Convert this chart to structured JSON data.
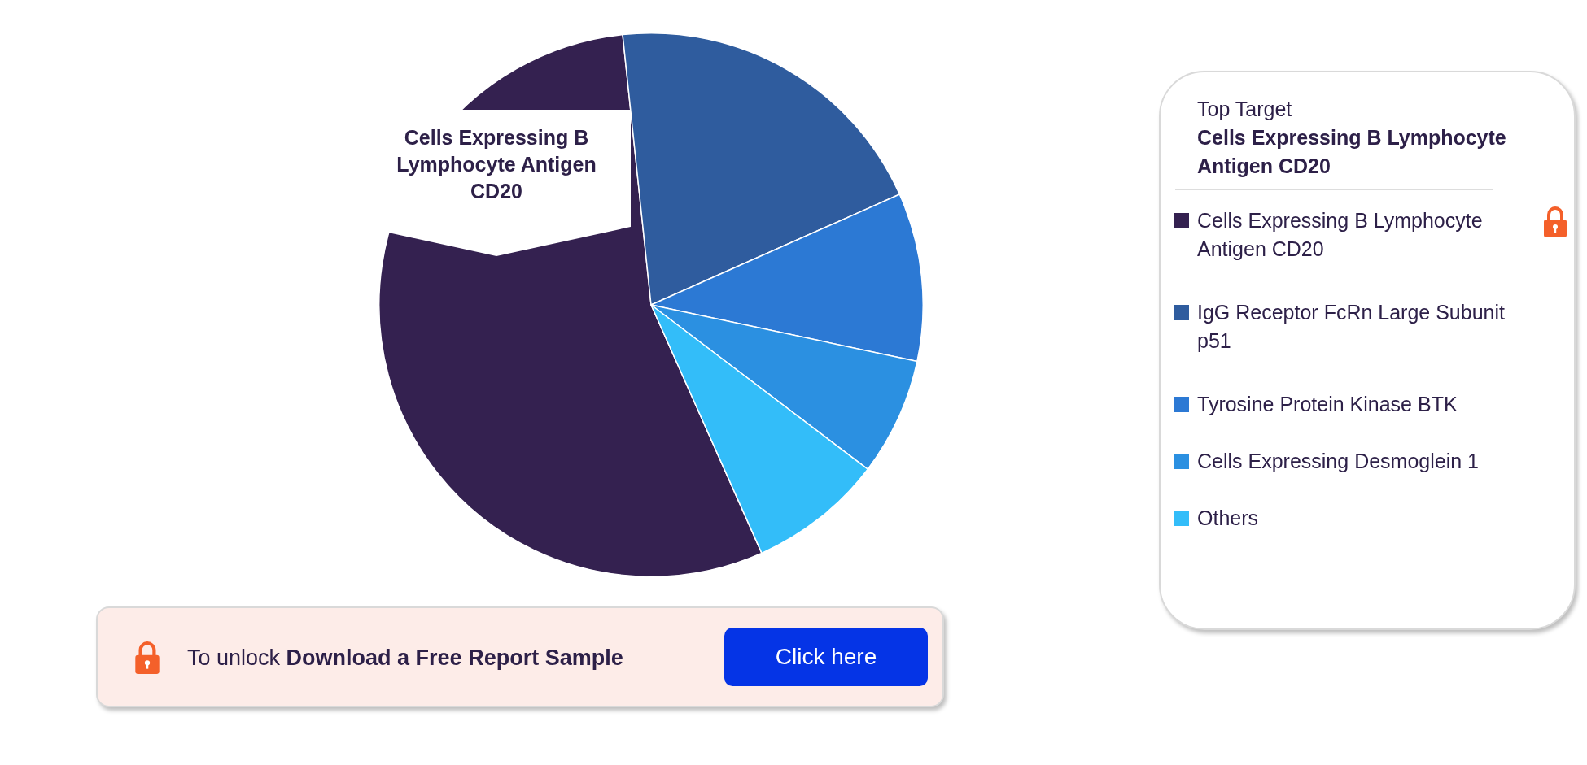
{
  "chart_data": {
    "type": "pie",
    "categories": [
      "Cells Expressing B Lymphocyte Antigen CD20",
      "IgG Receptor FcRn Large Subunit p51",
      "Tyrosine Protein Kinase BTK",
      "Cells Expressing Desmoglein 1",
      "Others"
    ],
    "values": [
      55,
      20,
      10,
      7,
      8
    ],
    "colors": [
      "#342150",
      "#2f5c9e",
      "#2c79d4",
      "#2b90e1",
      "#33bdf9"
    ],
    "legend": "right",
    "legend_title": "Top Target",
    "annotations": [
      "Cells Expressing B Lymphocyte Antigen CD20",
      "Cells Expressing B Lymphocyte Antigen CD20",
      "To unlock",
      "Download a Free Report Sample",
      "Click here"
    ]
  }
}
